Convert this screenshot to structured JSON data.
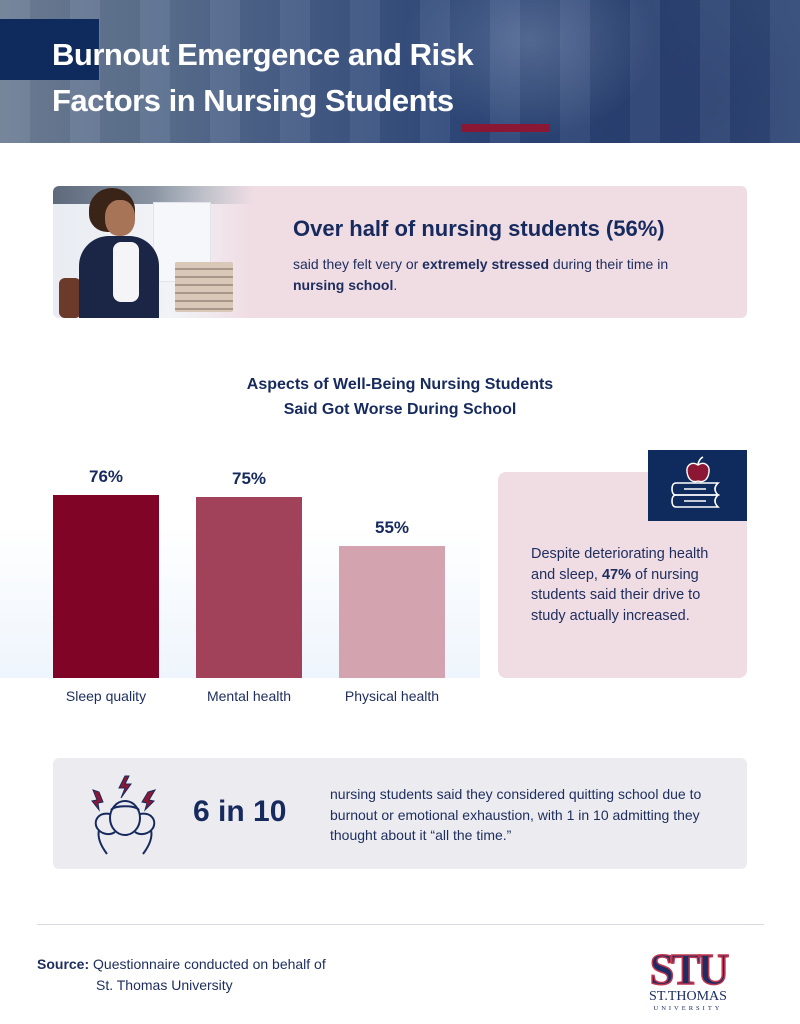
{
  "header": {
    "title_line1": "Burnout Emergence and Risk",
    "title_line2": "Factors in Nursing Students"
  },
  "stress_card": {
    "headline": "Over half of nursing students (56%)",
    "body_part1": "said they felt very or ",
    "body_bold1": "extremely stressed",
    "body_part2": " during their time in ",
    "body_bold2": "nursing school",
    "body_part3": ".",
    "image": "stressed-student-photo"
  },
  "chart_data": {
    "type": "bar",
    "title": "Aspects of Well-Being Nursing Students Said Got Worse During School",
    "title_line1": "Aspects of Well-Being Nursing Students",
    "title_line2": "Said Got Worse During School",
    "categories": [
      "Sleep quality",
      "Mental health",
      "Physical health"
    ],
    "values": [
      76,
      75,
      55
    ],
    "value_labels": [
      "76%",
      "75%",
      "55%"
    ],
    "colors": [
      "#7f0426",
      "#a2415a",
      "#d4a3b0"
    ],
    "xlabel": "",
    "ylabel": "",
    "ylim": [
      0,
      100
    ],
    "grid": false,
    "legend": "none"
  },
  "side_card": {
    "icon": "apple-on-books-icon",
    "text_part1": "Despite deteriorating health and sleep, ",
    "text_bold": "47%",
    "text_part2": " of nursing students said their drive to study actually increased."
  },
  "quit_card": {
    "icon": "stressed-head-icon",
    "stat": "6 in 10",
    "text": "nursing students said they considered quitting school due to burnout or emotional exhaustion, with 1 in 10 admitting they thought about it “all the time.”"
  },
  "footer": {
    "source_label": "Source:",
    "source_line1": " Questionnaire conducted on behalf of",
    "source_line2": "St. Thomas University",
    "logo_letters": "STU",
    "logo_name": "ST.THOMAS",
    "logo_sub": "UNIVERSITY"
  },
  "colors": {
    "navy": "#0f2a5c",
    "text_navy": "#172a5e",
    "crimson": "#8b1734",
    "pink_card": "#f0dce3",
    "gray_card": "#ececf0"
  }
}
